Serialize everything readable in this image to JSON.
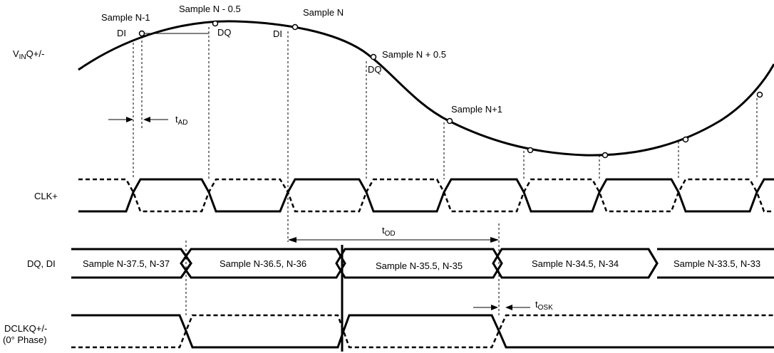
{
  "signals": {
    "vin_main": "V",
    "vin_sub": "IN",
    "vin_suffix": "Q+/-",
    "clk": "CLK+",
    "dq_di": "DQ, DI",
    "dclk_line1": "DCLKQ+/-",
    "dclk_line2": "(0° Phase)"
  },
  "samples": {
    "s_n_minus_1": "Sample N-1",
    "s_n_minus_half": "Sample N - 0.5",
    "s_n": "Sample N",
    "s_n_plus_half": "Sample N + 0.5",
    "s_n_plus_1": "Sample N+1"
  },
  "point_tags": {
    "di_1": "DI",
    "dq_1": "DQ",
    "di_2": "DI",
    "dq_2": "DQ"
  },
  "timing": {
    "tad_main": "t",
    "tad_sub": "AD",
    "tod_main": "t",
    "tod_sub": "OD",
    "tosk_main": "t",
    "tosk_sub": "OSK"
  },
  "bus": {
    "cells": [
      "Sample N-37.5, N-37",
      "Sample N-36.5, N-36",
      "Sample N-35.5, N-35",
      "Sample N-34.5, N-34",
      "Sample N-33.5, N-33"
    ]
  }
}
